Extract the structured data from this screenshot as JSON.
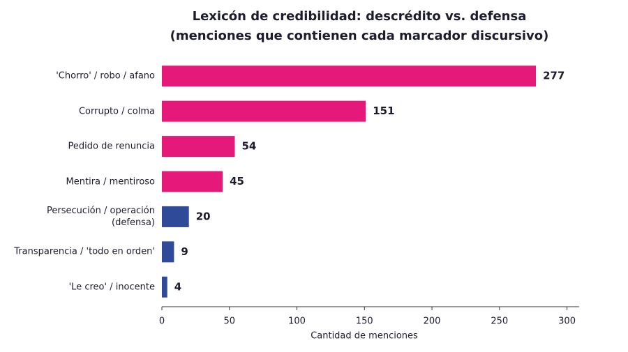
{
  "chart_data": {
    "type": "barh",
    "title": "Lexicón de credibilidad: descrédito vs. defensa",
    "subtitle": "(menciones que contienen cada marcador discursivo)",
    "x_label": "Cantidad de menciones",
    "categories": [
      "'Chorro' / robo / afano",
      "Corrupto / colma",
      "Pedido de renuncia",
      "Mentira / mentiroso",
      "Persecución / operación (defensa)",
      "Transparencia / 'todo en orden'",
      "'Le creo' / inocente"
    ],
    "values": [
      277,
      151,
      54,
      45,
      20,
      9,
      4
    ],
    "colors": [
      "#e5197a",
      "#e5197a",
      "#e5197a",
      "#e5197a",
      "#2f4a98",
      "#2f4a98",
      "#2f4a98"
    ],
    "xlim": [
      0,
      309
    ],
    "xticks": [
      0,
      50,
      100,
      150,
      200,
      250,
      300
    ],
    "grid": false
  }
}
